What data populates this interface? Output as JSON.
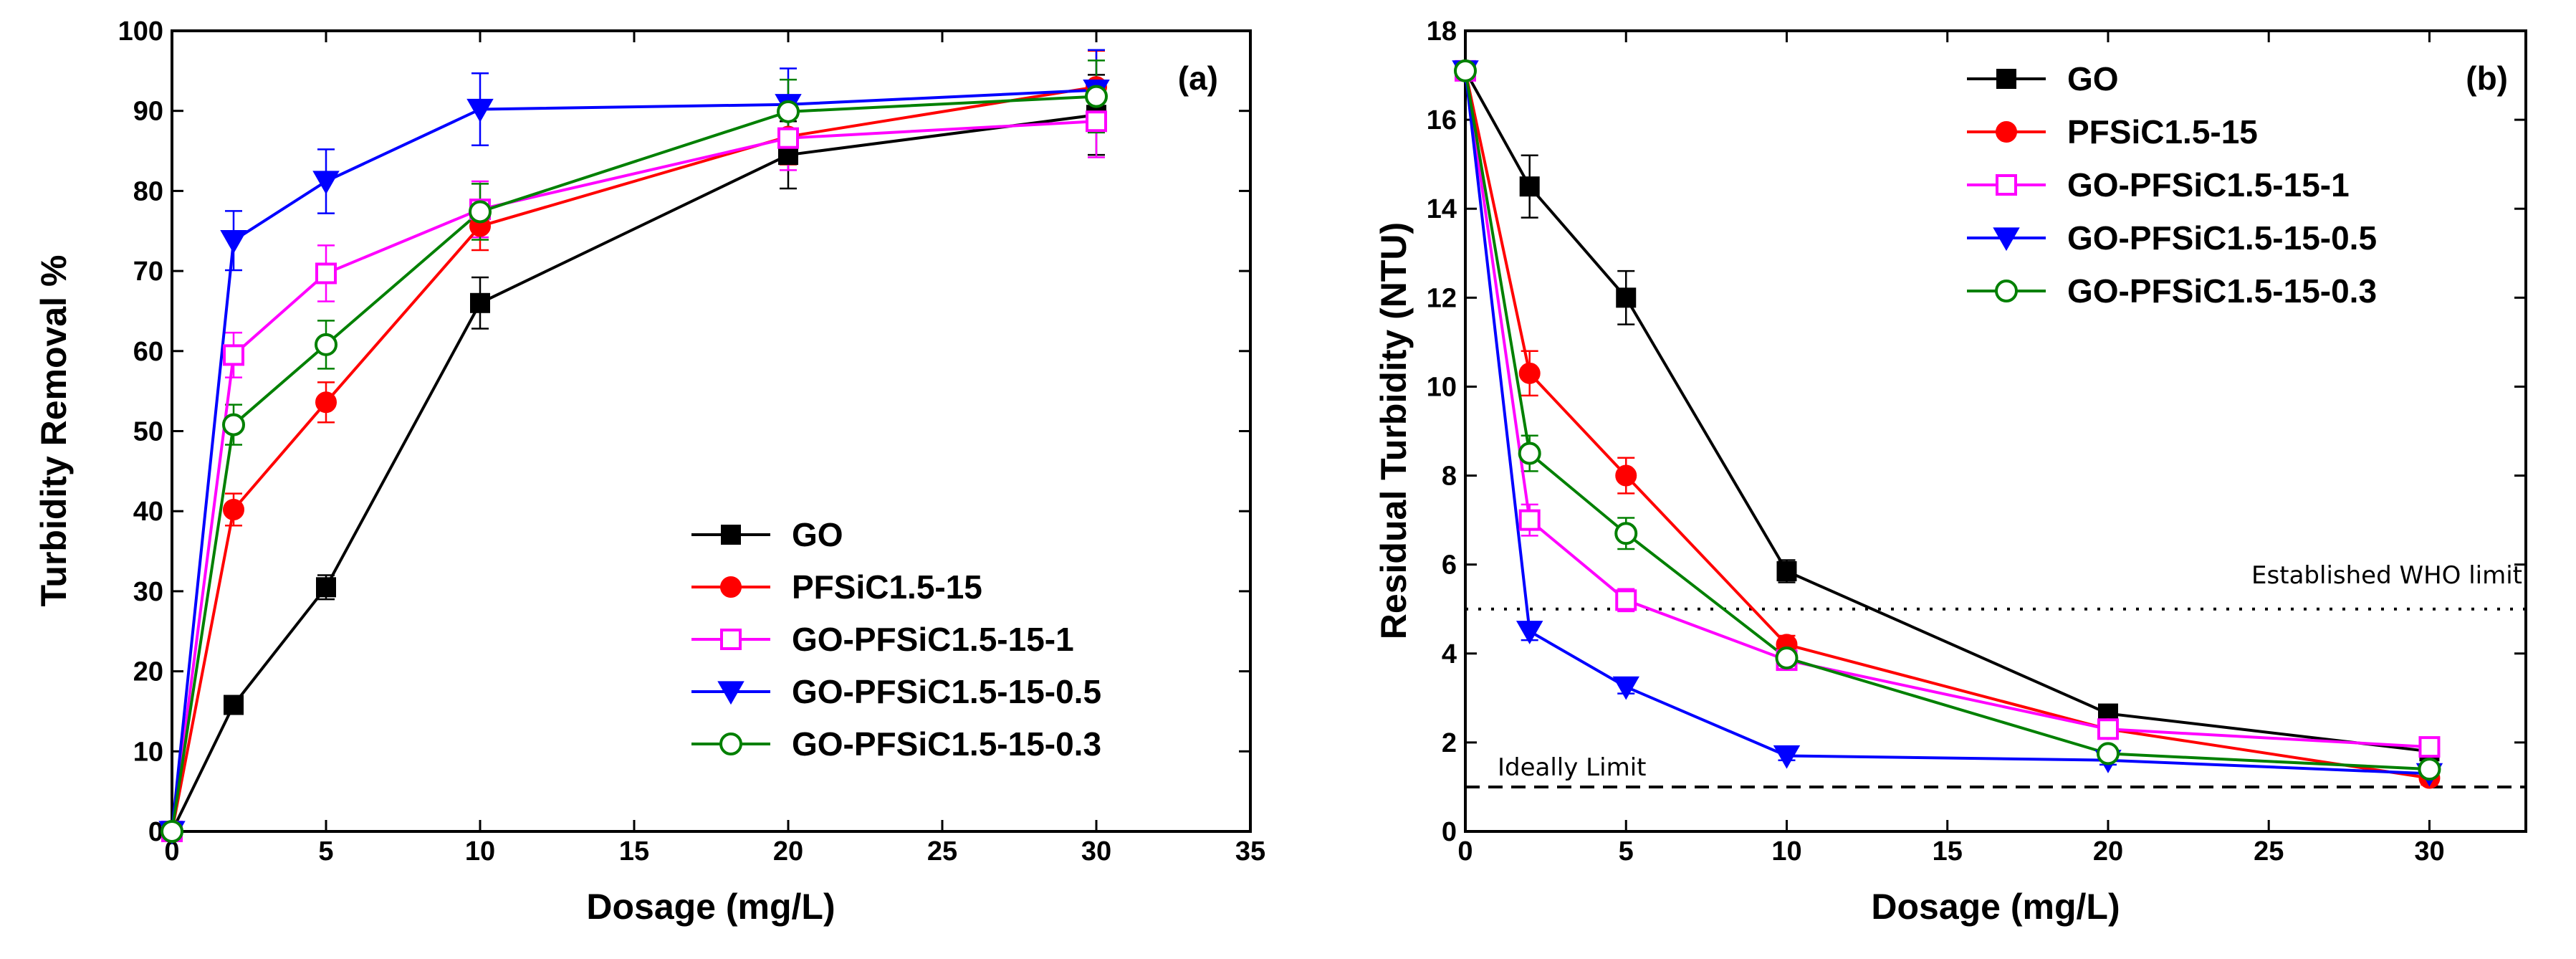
{
  "chart_data": [
    {
      "type": "line",
      "panel_tag": "(a)",
      "xlabel": "Dosage (mg/L)",
      "ylabel": "Turbidity Removal %",
      "xlim": [
        0,
        35
      ],
      "ylim": [
        0,
        100
      ],
      "xticks": [
        0,
        5,
        10,
        15,
        20,
        25,
        30,
        35
      ],
      "yticks": [
        0,
        10,
        20,
        30,
        40,
        50,
        60,
        70,
        80,
        90,
        100
      ],
      "xtick_labels": [
        "0",
        "5",
        "10",
        "15",
        "20",
        "25",
        "30",
        "35"
      ],
      "ytick_labels": [
        "0",
        "10",
        "20",
        "30",
        "40",
        "50",
        "60",
        "70",
        "80",
        "90",
        "100"
      ],
      "grid": false,
      "legend_position": "bottom-right",
      "series": [
        {
          "name": "GO",
          "color": "#000000",
          "marker": "square-filled",
          "x": [
            0,
            2,
            5,
            10,
            20,
            30
          ],
          "y": [
            0,
            15.8,
            30.5,
            66,
            84.5,
            89.5
          ],
          "err": [
            0,
            0.8,
            1.5,
            3.2,
            4.2,
            5.0
          ]
        },
        {
          "name": "PFSiC1.5-15",
          "color": "#ff0000",
          "marker": "circle-filled",
          "x": [
            0,
            2,
            5,
            10,
            20,
            30
          ],
          "y": [
            0,
            40.2,
            53.6,
            75.6,
            86.8,
            93
          ],
          "err": [
            0,
            2.0,
            2.5,
            3.0,
            3.5,
            4.5
          ]
        },
        {
          "name": "GO-PFSiC1.5-15-1",
          "color": "#ff00ff",
          "marker": "square-open",
          "x": [
            0,
            2,
            5,
            10,
            20,
            30
          ],
          "y": [
            0,
            59.5,
            69.7,
            77.7,
            86.6,
            88.7
          ],
          "err": [
            0,
            2.8,
            3.5,
            3.5,
            4.0,
            4.5
          ]
        },
        {
          "name": "GO-PFSiC1.5-15-0.5",
          "color": "#0000ff",
          "marker": "triangle-down-filled",
          "x": [
            0,
            2,
            5,
            10,
            20,
            30
          ],
          "y": [
            0,
            73.8,
            81.2,
            90.2,
            90.8,
            92.6
          ],
          "err": [
            0,
            3.7,
            4.0,
            4.5,
            4.5,
            5.0
          ]
        },
        {
          "name": "GO-PFSiC1.5-15-0.3",
          "color": "#008000",
          "marker": "circle-open",
          "x": [
            0,
            2,
            5,
            10,
            20,
            30
          ],
          "y": [
            0,
            50.8,
            60.8,
            77.4,
            89.9,
            91.8
          ],
          "err": [
            0,
            2.5,
            3.0,
            3.5,
            4.0,
            4.5
          ]
        }
      ]
    },
    {
      "type": "line",
      "panel_tag": "(b)",
      "xlabel": "Dosage (mg/L)",
      "ylabel": "Residual Turbidity (NTU)",
      "xlim": [
        0,
        33
      ],
      "ylim": [
        0,
        18
      ],
      "xticks": [
        0,
        5,
        10,
        15,
        20,
        25,
        30
      ],
      "yticks": [
        0,
        2,
        4,
        6,
        8,
        10,
        12,
        14,
        16,
        18
      ],
      "xtick_labels": [
        "0",
        "5",
        "10",
        "15",
        "20",
        "25",
        "30"
      ],
      "ytick_labels": [
        "0",
        "2",
        "4",
        "6",
        "8",
        "10",
        "12",
        "14",
        "16",
        "18"
      ],
      "grid": false,
      "legend_position": "top-right",
      "reference_lines": [
        {
          "label": "Established WHO limit",
          "y": 5,
          "style": "dotted"
        },
        {
          "label": "Ideally Limit",
          "y": 1,
          "style": "dashed"
        }
      ],
      "series": [
        {
          "name": "GO",
          "color": "#000000",
          "marker": "square-filled",
          "x": [
            0,
            2,
            5,
            10,
            20,
            30
          ],
          "y": [
            17.1,
            14.5,
            12.0,
            5.85,
            2.65,
            1.8
          ],
          "err": [
            0,
            0.7,
            0.6,
            0.25,
            0.15,
            0.2
          ]
        },
        {
          "name": "PFSiC1.5-15",
          "color": "#ff0000",
          "marker": "circle-filled",
          "x": [
            0,
            2,
            5,
            10,
            20,
            30
          ],
          "y": [
            17.1,
            10.3,
            8.0,
            4.2,
            2.3,
            1.2
          ],
          "err": [
            0,
            0.5,
            0.4,
            0.2,
            0.15,
            0.15
          ]
        },
        {
          "name": "GO-PFSiC1.5-15-1",
          "color": "#ff00ff",
          "marker": "square-open",
          "x": [
            0,
            2,
            5,
            10,
            20,
            30
          ],
          "y": [
            17.1,
            7.0,
            5.2,
            3.85,
            2.3,
            1.9
          ],
          "err": [
            0,
            0.35,
            0.25,
            0.2,
            0.15,
            0.15
          ]
        },
        {
          "name": "GO-PFSiC1.5-15-0.5",
          "color": "#0000ff",
          "marker": "triangle-down-filled",
          "x": [
            0,
            2,
            5,
            10,
            20,
            30
          ],
          "y": [
            17.1,
            4.5,
            3.25,
            1.7,
            1.6,
            1.3
          ],
          "err": [
            0,
            0.2,
            0.15,
            0.1,
            0.1,
            0.1
          ]
        },
        {
          "name": "GO-PFSiC1.5-15-0.3",
          "color": "#008000",
          "marker": "circle-open",
          "x": [
            0,
            2,
            5,
            10,
            20,
            30
          ],
          "y": [
            17.1,
            8.5,
            6.7,
            3.9,
            1.75,
            1.4
          ],
          "err": [
            0,
            0.4,
            0.35,
            0.2,
            0.15,
            0.15
          ]
        }
      ]
    }
  ]
}
